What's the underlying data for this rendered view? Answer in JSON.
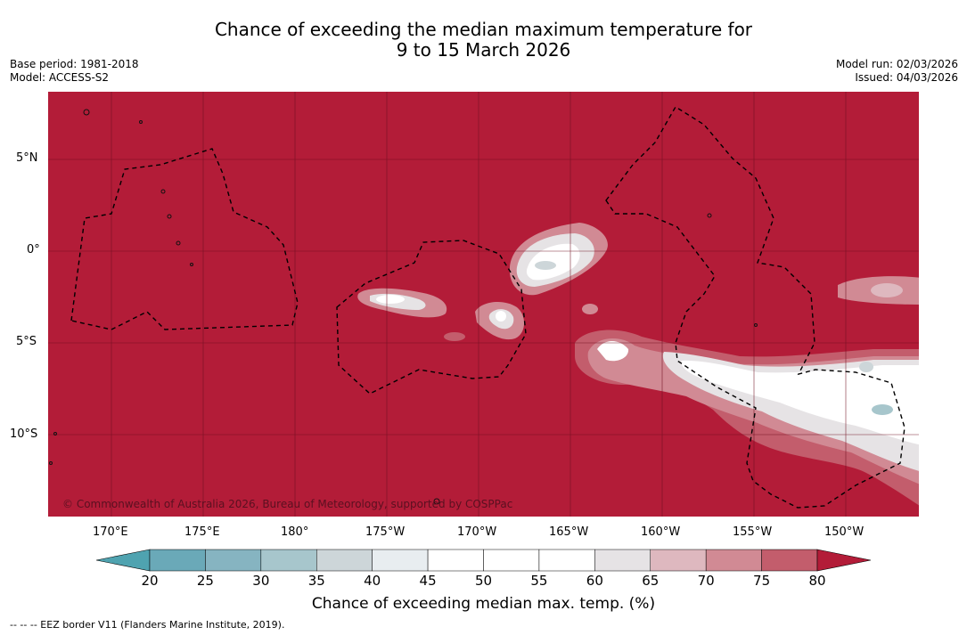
{
  "title": {
    "line1": "Chance of exceeding the median maximum temperature for",
    "line2": "9 to 15 March 2026"
  },
  "meta": {
    "base_period": "Base period: 1981-2018",
    "model": "Model: ACCESS-S2",
    "model_run": "Model run: 02/03/2026",
    "issued": "Issued: 04/03/2026"
  },
  "map": {
    "copyright": "© Commonwealth of Australia 2026, Bureau of Meteorology, supported by COSPPac",
    "lat_labels": [
      "5°N",
      "0°",
      "5°S",
      "10°S"
    ],
    "lon_labels": [
      "170°E",
      "175°E",
      "180°",
      "175°W",
      "170°W",
      "165°W",
      "160°W",
      "155°W",
      "150°W"
    ]
  },
  "colorbar": {
    "ticks": [
      "20",
      "25",
      "30",
      "35",
      "40",
      "45",
      "50",
      "55",
      "60",
      "65",
      "70",
      "75",
      "80"
    ],
    "colors": [
      "#6aa9b8",
      "#86b4c1",
      "#a7c6cc",
      "#cdd6d9",
      "#e8edf0",
      "#ffffff",
      "#ffffff",
      "#ffffff",
      "#e6e3e5",
      "#deb8bf",
      "#d18a94",
      "#c35d6c",
      "#b8344a"
    ],
    "under_color": "#4fa3b0",
    "over_color": "#b31c38",
    "label": "Chance of exceeding median max. temp. (%)"
  },
  "footer": "--  --  -- EEZ border V11 (Flanders Marine Institute, 2019)."
}
